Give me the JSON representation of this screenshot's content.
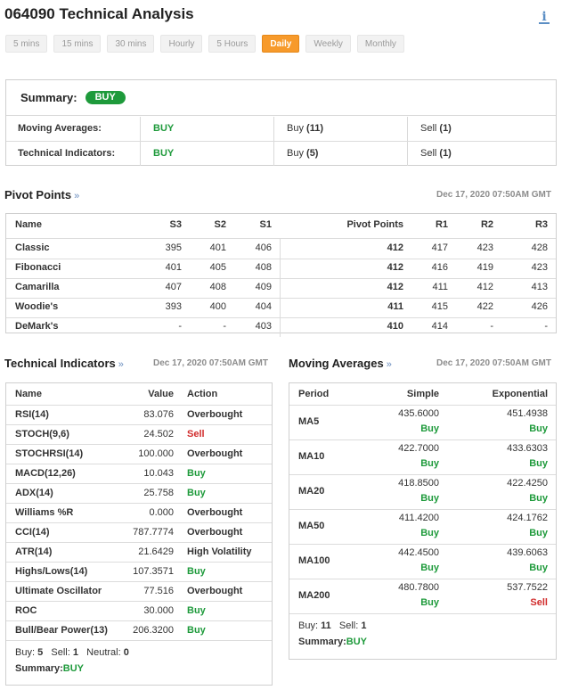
{
  "title": "064090 Technical Analysis",
  "tabs": [
    "5 mins",
    "15 mins",
    "30 mins",
    "Hourly",
    "5 Hours",
    "Daily",
    "Weekly",
    "Monthly"
  ],
  "active_tab": 5,
  "summary": {
    "label": "Summary:",
    "badge": "BUY",
    "rows": [
      {
        "name": "Moving Averages:",
        "signal": "BUY",
        "buy_label": "Buy",
        "buy_count": "(11)",
        "sell_label": "Sell",
        "sell_count": "(1)"
      },
      {
        "name": "Technical Indicators:",
        "signal": "BUY",
        "buy_label": "Buy",
        "buy_count": "(5)",
        "sell_label": "Sell",
        "sell_count": "(1)"
      }
    ]
  },
  "pivot": {
    "title": "Pivot Points",
    "chev": "»",
    "timestamp": "Dec 17, 2020 07:50AM GMT",
    "headers": [
      "Name",
      "S3",
      "S2",
      "S1",
      "Pivot Points",
      "R1",
      "R2",
      "R3"
    ],
    "rows": [
      [
        "Classic",
        "395",
        "401",
        "406",
        "412",
        "417",
        "423",
        "428"
      ],
      [
        "Fibonacci",
        "401",
        "405",
        "408",
        "412",
        "416",
        "419",
        "423"
      ],
      [
        "Camarilla",
        "407",
        "408",
        "409",
        "412",
        "411",
        "412",
        "413"
      ],
      [
        "Woodie's",
        "393",
        "400",
        "404",
        "411",
        "415",
        "422",
        "426"
      ],
      [
        "DeMark's",
        "-",
        "-",
        "403",
        "410",
        "414",
        "-",
        "-"
      ]
    ]
  },
  "indicators": {
    "title": "Technical Indicators",
    "chev": "»",
    "timestamp": "Dec 17, 2020 07:50AM GMT",
    "headers": [
      "Name",
      "Value",
      "Action"
    ],
    "rows": [
      {
        "name": "RSI(14)",
        "value": "83.076",
        "action": "Overbought",
        "tone": "neutral"
      },
      {
        "name": "STOCH(9,6)",
        "value": "24.502",
        "action": "Sell",
        "tone": "sell"
      },
      {
        "name": "STOCHRSI(14)",
        "value": "100.000",
        "action": "Overbought",
        "tone": "neutral"
      },
      {
        "name": "MACD(12,26)",
        "value": "10.043",
        "action": "Buy",
        "tone": "buy"
      },
      {
        "name": "ADX(14)",
        "value": "25.758",
        "action": "Buy",
        "tone": "buy"
      },
      {
        "name": "Williams %R",
        "value": "0.000",
        "action": "Overbought",
        "tone": "neutral"
      },
      {
        "name": "CCI(14)",
        "value": "787.7774",
        "action": "Overbought",
        "tone": "neutral"
      },
      {
        "name": "ATR(14)",
        "value": "21.6429",
        "action": "High Volatility",
        "tone": "neutral"
      },
      {
        "name": "Highs/Lows(14)",
        "value": "107.3571",
        "action": "Buy",
        "tone": "buy"
      },
      {
        "name": "Ultimate Oscillator",
        "value": "77.516",
        "action": "Overbought",
        "tone": "neutral"
      },
      {
        "name": "ROC",
        "value": "30.000",
        "action": "Buy",
        "tone": "buy"
      },
      {
        "name": "Bull/Bear Power(13)",
        "value": "206.3200",
        "action": "Buy",
        "tone": "buy"
      }
    ],
    "footer": {
      "buy_label": "Buy:",
      "buy": "5",
      "sell_label": "Sell:",
      "sell": "1",
      "neutral_label": "Neutral:",
      "neutral": "0",
      "summary_label": "Summary:",
      "summary": "BUY"
    }
  },
  "moving_averages": {
    "title": "Moving Averages",
    "chev": "»",
    "timestamp": "Dec 17, 2020 07:50AM GMT",
    "headers": [
      "Period",
      "Simple",
      "Exponential"
    ],
    "rows": [
      {
        "period": "MA5",
        "simple": "435.6000",
        "simple_action": "Buy",
        "simple_tone": "buy",
        "exp": "451.4938",
        "exp_action": "Buy",
        "exp_tone": "buy"
      },
      {
        "period": "MA10",
        "simple": "422.7000",
        "simple_action": "Buy",
        "simple_tone": "buy",
        "exp": "433.6303",
        "exp_action": "Buy",
        "exp_tone": "buy"
      },
      {
        "period": "MA20",
        "simple": "418.8500",
        "simple_action": "Buy",
        "simple_tone": "buy",
        "exp": "422.4250",
        "exp_action": "Buy",
        "exp_tone": "buy"
      },
      {
        "period": "MA50",
        "simple": "411.4200",
        "simple_action": "Buy",
        "simple_tone": "buy",
        "exp": "424.1762",
        "exp_action": "Buy",
        "exp_tone": "buy"
      },
      {
        "period": "MA100",
        "simple": "442.4500",
        "simple_action": "Buy",
        "simple_tone": "buy",
        "exp": "439.6063",
        "exp_action": "Buy",
        "exp_tone": "buy"
      },
      {
        "period": "MA200",
        "simple": "480.7800",
        "simple_action": "Buy",
        "simple_tone": "buy",
        "exp": "537.7522",
        "exp_action": "Sell",
        "exp_tone": "sell"
      }
    ],
    "footer": {
      "buy_label": "Buy:",
      "buy": "11",
      "sell_label": "Sell:",
      "sell": "1",
      "summary_label": "Summary:",
      "summary": "BUY"
    }
  },
  "colors": {
    "accent": "#f79a2b",
    "buy": "#1e9a3b",
    "sell": "#d12c2c",
    "link": "#6b8ebf"
  }
}
